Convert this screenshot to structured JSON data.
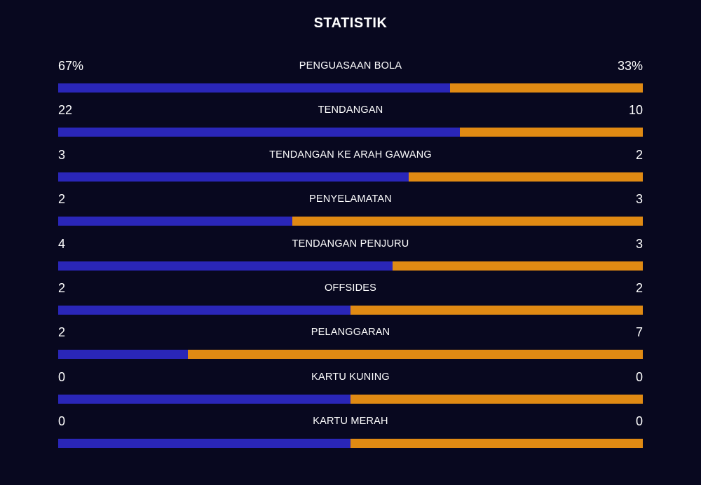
{
  "title": "STATISTIK",
  "colors": {
    "background": "#08081f",
    "home": "#2a26b8",
    "away": "#e08a13"
  },
  "stats": [
    {
      "label": "PENGUASAAN BOLA",
      "home": "67%",
      "away": "33%",
      "home_value": 67,
      "away_value": 33
    },
    {
      "label": "TENDANGAN",
      "home": "22",
      "away": "10",
      "home_value": 22,
      "away_value": 10
    },
    {
      "label": "TENDANGAN KE ARAH GAWANG",
      "home": "3",
      "away": "2",
      "home_value": 3,
      "away_value": 2
    },
    {
      "label": "PENYELAMATAN",
      "home": "2",
      "away": "3",
      "home_value": 2,
      "away_value": 3
    },
    {
      "label": "TENDANGAN PENJURU",
      "home": "4",
      "away": "3",
      "home_value": 4,
      "away_value": 3
    },
    {
      "label": "OFFSIDES",
      "home": "2",
      "away": "2",
      "home_value": 2,
      "away_value": 2
    },
    {
      "label": "PELANGGARAN",
      "home": "2",
      "away": "7",
      "home_value": 2,
      "away_value": 7
    },
    {
      "label": "KARTU KUNING",
      "home": "0",
      "away": "0",
      "home_value": 0,
      "away_value": 0
    },
    {
      "label": "KARTU MERAH",
      "home": "0",
      "away": "0",
      "home_value": 0,
      "away_value": 0
    }
  ]
}
